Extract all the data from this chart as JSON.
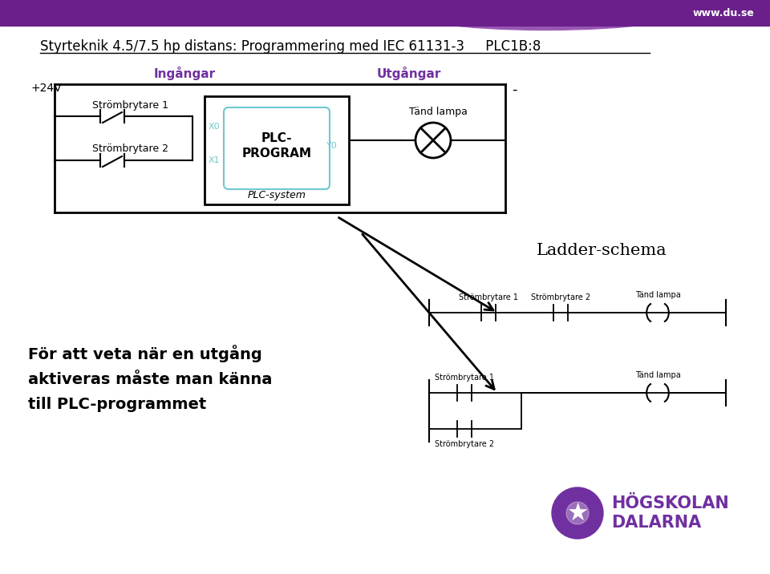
{
  "bg_color": "#ffffff",
  "header_color": "#6a1f8a",
  "header_light_color": "#9b59b6",
  "header_text": "www.du.se",
  "title_text": "Styrteknik 4.5/7.5 hp distans: Programmering med IEC 61131-3     PLC1B:8",
  "plus24v": "+24V",
  "ingangar": "Ingångar",
  "utgangar": "Utgångar",
  "strombrytare1": "Strömbrytare 1",
  "strombrytare2": "Strömbrytare 2",
  "tand_lampa": "Tänd lampa",
  "plc_program": "PLC-\nPROGRAM",
  "plc_system": "PLC-system",
  "x0_label": "X0",
  "x1_label": "X1",
  "y0_label": "Y0",
  "ladder_schema": "Ladder-schema",
  "text_left": "För att veta när en utgång\naktiveras måste man känna\ntill PLC-programmet",
  "purple_label": "#7030a0",
  "black": "#000000",
  "plc_box_color": "#70c8d0",
  "dash": "-"
}
